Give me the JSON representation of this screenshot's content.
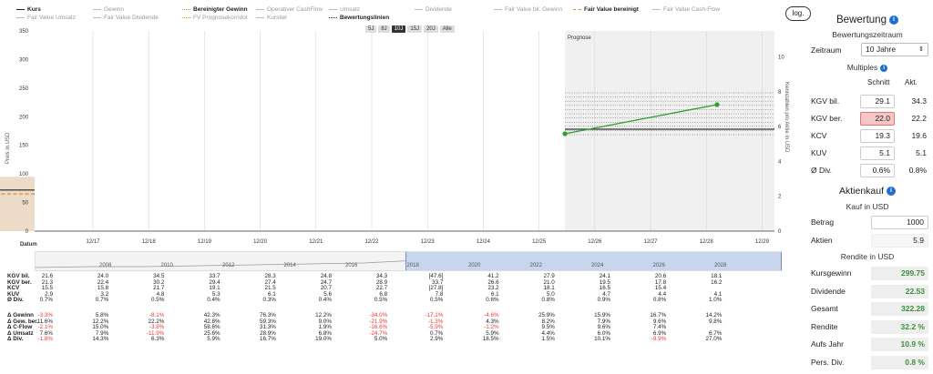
{
  "legend": {
    "row1": [
      {
        "label": "Kurs",
        "on": true
      },
      {
        "label": "Gewinn",
        "on": false
      },
      {
        "label": "Bereinigter Gewinn",
        "on": true,
        "style": "orange"
      },
      {
        "label": "Operativer CashFlow",
        "on": false
      },
      {
        "label": "Umsatz",
        "on": false
      },
      {
        "label": "Dividende",
        "on": false
      },
      {
        "label": "Fair Value bil. Gewinn",
        "on": false
      },
      {
        "label": "Fair Value bereinigt",
        "on": true,
        "style": "orange"
      },
      {
        "label": "Fair Value Cash-Flow",
        "on": false
      }
    ],
    "row2": [
      {
        "label": "Fair Value Umsatz",
        "on": false
      },
      {
        "label": "Fair Value Dividende",
        "on": false
      },
      {
        "label": "FV Prognosekorridor",
        "on": false,
        "style": "dot"
      },
      {
        "label": "Kurstiel",
        "on": false
      },
      {
        "label": "Bewertungslinien",
        "on": true
      }
    ]
  },
  "range_buttons": [
    "5J",
    "8J",
    "10J",
    "15J",
    "20J",
    "Alle"
  ],
  "range_active": "10J",
  "log_label": "log.",
  "chart": {
    "left_axis_title": "Preis in USD",
    "right_axis_title": "Kennzahlen pro Aktie in USD",
    "prognose_label": "Prognose",
    "datum_label": "Datum",
    "y_left_ticks": [
      "0",
      "50",
      "100",
      "150",
      "200",
      "250",
      "300",
      "350"
    ],
    "y_right_ticks": [
      "0",
      "2",
      "4",
      "6",
      "8",
      "10"
    ],
    "x_ticks": [
      "12/17",
      "12/18",
      "12/19",
      "12/20",
      "12/21",
      "12/22",
      "12/23",
      "12/24",
      "12/25",
      "12/26",
      "12/27",
      "12/28",
      "12/29"
    ]
  },
  "navigator_years": [
    "2008",
    "2010",
    "2012",
    "2014",
    "2016",
    "2018",
    "2020",
    "2022",
    "2024",
    "2026",
    "2028"
  ],
  "table": {
    "group1": [
      {
        "label": "KGV bil.",
        "values": [
          "21.6",
          "24.0",
          "34.5",
          "33.7",
          "28.3",
          "24.8",
          "34.3",
          "[47.6]",
          "41.2",
          "27.9",
          "24.1",
          "20.6",
          "18.1"
        ]
      },
      {
        "label": "KGV ber.",
        "values": [
          "21.3",
          "22.4",
          "30.2",
          "29.4",
          "27.4",
          "24.7",
          "28.9",
          "33.7",
          "26.6",
          "21.0",
          "19.5",
          "17.8",
          "16.2"
        ]
      },
      {
        "label": "KCV",
        "values": [
          "15.5",
          "15.8",
          "21.7",
          "19.1",
          "21.5",
          "20.7",
          "22.7",
          "[27.8]",
          "23.2",
          "18.1",
          "16.5",
          "15.4",
          ""
        ]
      },
      {
        "label": "KUV",
        "values": [
          "2.9",
          "3.2",
          "4.8",
          "5.3",
          "6.1",
          "5.6",
          "6.8",
          "7.8",
          "6.1",
          "5.0",
          "4.7",
          "4.4",
          "4.1"
        ]
      },
      {
        "label": "Ø Div.",
        "values": [
          "0.7%",
          "0.7%",
          "0.5%",
          "0.4%",
          "0.3%",
          "0.4%",
          "0.5%",
          "0.5%",
          "0.6%",
          "0.8%",
          "0.9%",
          "0.8%",
          "1.0%"
        ]
      }
    ],
    "group2": [
      {
        "label": "Δ Gewinn",
        "values": [
          "-3.3%",
          "5.8%",
          "-8.1%",
          "42.3%",
          "76.3%",
          "12.2%",
          "-34.0%",
          "-17.1%",
          "-4.6%",
          "25.9%",
          "15.9%",
          "16.7%",
          "14.2%"
        ]
      },
      {
        "label": "Δ Gew. ber.",
        "values": [
          "11.6%",
          "12.2%",
          "22.2%",
          "42.8%",
          "59.3%",
          "9.0%",
          "-21.9%",
          "-1.3%",
          "4.3%",
          "8.2%",
          "7.9%",
          "9.6%",
          "9.8%"
        ]
      },
      {
        "label": "Δ C-Flow",
        "values": [
          "-2.1%",
          "15.0%",
          "-3.8%",
          "58.6%",
          "31.3%",
          "1.9%",
          "-16.6%",
          "-5.9%",
          "-1.2%",
          "9.5%",
          "9.6%",
          "7.4%",
          ""
        ]
      },
      {
        "label": "Δ Umsatz",
        "values": [
          "7.6%",
          "7.9%",
          "-11.9%",
          "25.6%",
          "28.9%",
          "6.8%",
          "-24.7%",
          "0.7%",
          "5.9%",
          "4.4%",
          "6.0%",
          "6.9%",
          "6.7%"
        ]
      },
      {
        "label": "Δ Div.",
        "values": [
          "-1.8%",
          "14.3%",
          "6.3%",
          "5.9%",
          "16.7%",
          "19.0%",
          "5.0%",
          "2.9%",
          "18.5%",
          "1.5%",
          "10.1%",
          "-9.9%",
          "27.0%"
        ]
      }
    ]
  },
  "panel": {
    "title": "Bewertung",
    "subtitle": "Bewertungszeitraum",
    "zeitraum_label": "Zeitraum",
    "zeitraum_value": "10 Jahre",
    "multiples_label": "Multiples",
    "col_schnitt": "Schnitt",
    "col_akt": "Akt.",
    "multiples": [
      {
        "label": "KGV bil.",
        "schnitt": "29.1",
        "akt": "34.3"
      },
      {
        "label": "KGV ber.",
        "schnitt": "22.0",
        "akt": "22.2"
      },
      {
        "label": "KCV",
        "schnitt": "19.3",
        "akt": "19.6"
      },
      {
        "label": "KUV",
        "schnitt": "5.1",
        "akt": "5.1"
      },
      {
        "label": "Ø Div.",
        "schnitt": "0.6%",
        "akt": "0.8%"
      }
    ],
    "kauf_title": "Aktienkauf",
    "kauf_sub": "Kauf in USD",
    "betrag_label": "Betrag",
    "betrag_value": "1000",
    "aktien_label": "Aktien",
    "aktien_value": "5.9",
    "rendite_sub": "Rendite in USD",
    "results": [
      {
        "label": "Kursgewinn",
        "value": "299.75"
      },
      {
        "label": "Dividende",
        "value": "22.53"
      },
      {
        "label": "Gesamt",
        "value": "322.28"
      },
      {
        "label": "Rendite",
        "value": "32.2 %"
      },
      {
        "label": "Aufs Jahr",
        "value": "10.9 %"
      },
      {
        "label": "Pers. Div.",
        "value": "0.8 %"
      }
    ]
  },
  "colors": {
    "area": "#ecdcc7",
    "orange": "#e08a2c",
    "green": "#2ea02e",
    "price": "#222222",
    "accent": "#1e6fd0"
  }
}
